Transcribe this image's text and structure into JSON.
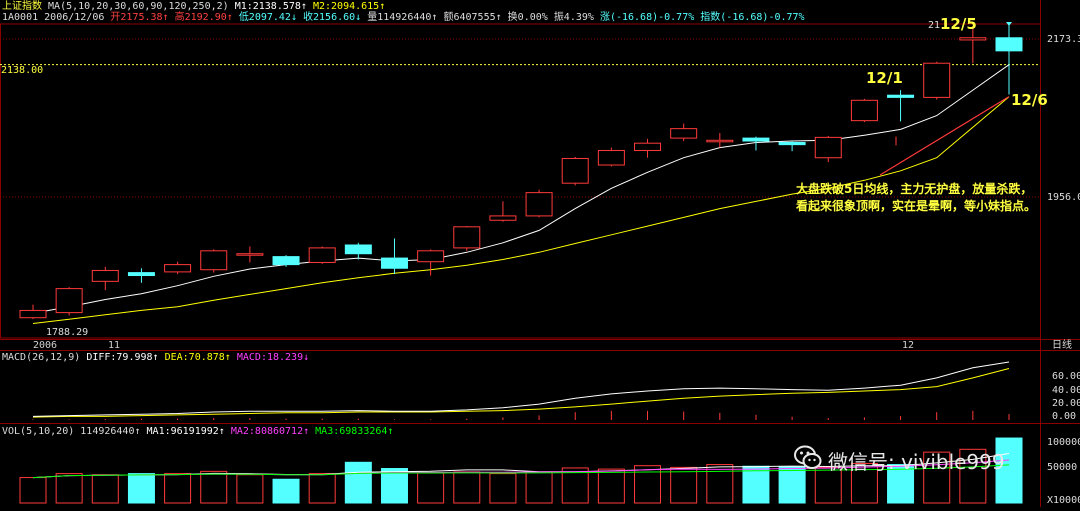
{
  "header": {
    "index_name": "上证指数",
    "ma_params": "MA(5,10,20,30,60,90,120,250,2)",
    "m1": "M1:2138.578↑",
    "m2": "M2:2094.615↑",
    "code": "1A0001",
    "date": "2006/12/06",
    "open": "开2175.38↑",
    "high": "高2192.90↑",
    "low": "低2097.42↓",
    "close": "收2156.60↓",
    "volume": "量114926440↑",
    "amount": "额6407555↑",
    "turnover": "换0.00%",
    "amplitude": "振4.39%",
    "change": "涨(-16.68)-0.77%",
    "index_change": "指数(-16.68)-0.77%"
  },
  "price_axis": {
    "top_label": "2173.3",
    "mid_label": "1956.0",
    "crosshair_label": "2138.00",
    "low_label": "1788.29",
    "partial_label": "21",
    "top_value": 2173.3,
    "mid_value": 1956.0,
    "crosshair_value": 2138.0
  },
  "time_axis": {
    "labels": [
      "2006",
      "11",
      "12"
    ],
    "period": "日线"
  },
  "macd": {
    "params": "MACD(26,12,9)",
    "diff": "DIFF:79.998↑",
    "dea": "DEA:70.878↑",
    "macd": "MACD:18.239↓",
    "ticks": [
      "60.00",
      "40.00",
      "20.00",
      "0.00"
    ]
  },
  "vol": {
    "params": "VOL(5,10,20)",
    "value": "114926440↑",
    "ma1": "MA1:96191992↑",
    "ma2": "MA2:80860712↑",
    "ma3": "MA3:69833264↑",
    "ticks": [
      "100000",
      "50000"
    ],
    "unit": "X10000"
  },
  "annotations": {
    "d1201": "12/1",
    "d1205": "12/5",
    "d1206": "12/6",
    "comment_line1": "大盘跌破5日均线，主力无护盘，放量杀跌，",
    "comment_line2": "看起来很象顶啊，实在是晕啊，等小妹指点。"
  },
  "watermark": {
    "text": "微信号: vivible999",
    "icon": "wechat-icon"
  },
  "colors": {
    "up": "#ff3a3a",
    "down": "#54ffff",
    "ma1": "#ffffff",
    "ma2": "#ffff00",
    "dea": "#ffff00",
    "ma3_vol": "#00ff00",
    "macd_label": "#ff40ff",
    "grid": "#8b0000",
    "annotation": "#ffff40"
  },
  "chart_data": {
    "type": "candlestick",
    "ylim_price": [
      1788,
      2193
    ],
    "ylim_macd": [
      0,
      80
    ],
    "ylim_volume": [
      0,
      115000000
    ],
    "candles": [
      {
        "o": 1790,
        "c": 1800,
        "h": 1808,
        "l": 1788,
        "v": 45000000
      },
      {
        "o": 1797,
        "c": 1830,
        "h": 1832,
        "l": 1793,
        "v": 52000000
      },
      {
        "o": 1840,
        "c": 1855,
        "h": 1860,
        "l": 1828,
        "v": 50000000
      },
      {
        "o": 1852,
        "c": 1848,
        "h": 1858,
        "l": 1838,
        "v": 52000000
      },
      {
        "o": 1853,
        "c": 1863,
        "h": 1867,
        "l": 1850,
        "v": 52000000
      },
      {
        "o": 1856,
        "c": 1882,
        "h": 1884,
        "l": 1852,
        "v": 56000000
      },
      {
        "o": 1878,
        "c": 1878,
        "h": 1888,
        "l": 1866,
        "v": 50000000
      },
      {
        "o": 1874,
        "c": 1863,
        "h": 1876,
        "l": 1860,
        "v": 42000000
      },
      {
        "o": 1866,
        "c": 1886,
        "h": 1888,
        "l": 1864,
        "v": 52000000
      },
      {
        "o": 1890,
        "c": 1878,
        "h": 1893,
        "l": 1870,
        "v": 72000000
      },
      {
        "o": 1872,
        "c": 1858,
        "h": 1899,
        "l": 1850,
        "v": 61000000
      },
      {
        "o": 1867,
        "c": 1882,
        "h": 1884,
        "l": 1848,
        "v": 53000000
      },
      {
        "o": 1886,
        "c": 1915,
        "h": 1916,
        "l": 1882,
        "v": 55000000
      },
      {
        "o": 1924,
        "c": 1930,
        "h": 1950,
        "l": 1922,
        "v": 52000000
      },
      {
        "o": 1930,
        "c": 1962,
        "h": 1966,
        "l": 1928,
        "v": 55000000
      },
      {
        "o": 1975,
        "c": 2009,
        "h": 2011,
        "l": 1972,
        "v": 62000000
      },
      {
        "o": 2000,
        "c": 2020,
        "h": 2024,
        "l": 1998,
        "v": 60000000
      },
      {
        "o": 2020,
        "c": 2030,
        "h": 2036,
        "l": 2010,
        "v": 66000000
      },
      {
        "o": 2037,
        "c": 2050,
        "h": 2057,
        "l": 2033,
        "v": 63000000
      },
      {
        "o": 2034,
        "c": 2034,
        "h": 2044,
        "l": 2024,
        "v": 68000000
      },
      {
        "o": 2037,
        "c": 2033,
        "h": 2039,
        "l": 2020,
        "v": 65000000
      },
      {
        "o": 2031,
        "c": 2028,
        "h": 2033,
        "l": 2019,
        "v": 64000000
      },
      {
        "o": 2010,
        "c": 2038,
        "h": 2040,
        "l": 2004,
        "v": 63000000
      },
      {
        "o": 2061,
        "c": 2089,
        "h": 2091,
        "l": 2059,
        "v": 70000000
      },
      {
        "o": 2096,
        "c": 2093,
        "h": 2103,
        "l": 2060,
        "v": 68000000
      },
      {
        "o": 2093,
        "c": 2140,
        "h": 2142,
        "l": 2090,
        "v": 90000000
      },
      {
        "o": 2172,
        "c": 2175,
        "h": 2188,
        "l": 2140,
        "v": 95000000
      },
      {
        "o": 2175,
        "c": 2157,
        "h": 2193,
        "l": 2097,
        "v": 114926440
      }
    ],
    "ma1": [
      1796,
      1805,
      1815,
      1823,
      1834,
      1847,
      1857,
      1863,
      1868,
      1872,
      1868,
      1870,
      1880,
      1893,
      1910,
      1940,
      1968,
      1990,
      2010,
      2024,
      2031,
      2033,
      2034,
      2041,
      2049,
      2068,
      2103,
      2138
    ],
    "ma2": [
      1782,
      1788,
      1794,
      1800,
      1805,
      1814,
      1822,
      1830,
      1838,
      1845,
      1851,
      1856,
      1862,
      1870,
      1880,
      1892,
      1904,
      1916,
      1928,
      1940,
      1950,
      1960,
      1968,
      1979,
      1992,
      2010,
      2052,
      2094
    ],
    "macd_diff": [
      5,
      6,
      7,
      8,
      9,
      11,
      12,
      12,
      12,
      13,
      12,
      12,
      14,
      17,
      22,
      30,
      36,
      40,
      43,
      44,
      43,
      42,
      41,
      44,
      48,
      58,
      72,
      80
    ],
    "macd_dea": [
      4,
      5,
      5,
      6,
      7,
      8,
      9,
      10,
      10,
      11,
      11,
      11,
      12,
      13,
      15,
      18,
      22,
      26,
      30,
      33,
      35,
      37,
      38,
      40,
      42,
      46,
      58,
      71
    ],
    "macd_hist": [
      2,
      2,
      3,
      4,
      4,
      6,
      6,
      4,
      4,
      4,
      2,
      2,
      4,
      8,
      14,
      24,
      28,
      28,
      26,
      22,
      16,
      10,
      6,
      8,
      12,
      24,
      28,
      18
    ]
  }
}
